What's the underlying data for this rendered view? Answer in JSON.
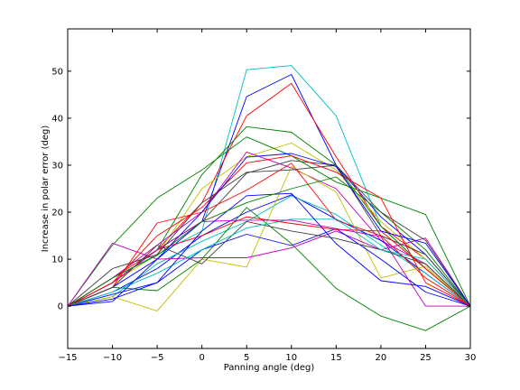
{
  "chart_data": {
    "type": "line",
    "title": "",
    "xlabel": "Panning angle (deg)",
    "ylabel": "Increase in polar error (deg)",
    "xlim": [
      -15,
      30
    ],
    "ylim": [
      -9,
      59
    ],
    "xticks": [
      -15,
      -10,
      -5,
      0,
      5,
      10,
      15,
      20,
      25,
      30
    ],
    "yticks": [
      0,
      10,
      20,
      30,
      40,
      50
    ],
    "grid": false,
    "x": [
      -15,
      -10,
      -5,
      0,
      5,
      10,
      15,
      20,
      25,
      30
    ],
    "series": [
      {
        "color": "#00bfbf",
        "values": [
          0,
          6,
          11,
          16,
          50.3,
          51.2,
          40.5,
          17,
          8,
          0
        ]
      },
      {
        "color": "#0000ff",
        "values": [
          0,
          4,
          10,
          18,
          44.6,
          49.3,
          30.0,
          19,
          11,
          0
        ]
      },
      {
        "color": "#ff0000",
        "values": [
          0,
          6,
          12,
          22,
          40.5,
          47.4,
          31.8,
          17,
          10,
          0
        ]
      },
      {
        "color": "#008000",
        "values": [
          0,
          5,
          12,
          28,
          38.2,
          37.0,
          30.0,
          17,
          8,
          0
        ]
      },
      {
        "color": "#bfbf00",
        "values": [
          0,
          5,
          11,
          25,
          31.8,
          34.7,
          29.0,
          18,
          10,
          0
        ]
      },
      {
        "color": "#bf00bf",
        "values": [
          0,
          6,
          13,
          20,
          32.8,
          29.4,
          25.0,
          14,
          9,
          0
        ]
      },
      {
        "color": "#404040",
        "values": [
          0,
          5,
          12,
          18,
          28.3,
          31.0,
          30.0,
          15,
          11,
          0
        ]
      },
      {
        "color": "#008000",
        "values": [
          0,
          13,
          23,
          29,
          36.0,
          32.0,
          26.4,
          23,
          19.5,
          0
        ]
      },
      {
        "color": "#0000ff",
        "values": [
          0,
          3,
          8,
          15,
          20,
          23.7,
          18.5,
          14,
          7,
          0
        ]
      },
      {
        "color": "#00bfbf",
        "values": [
          0,
          2,
          9,
          13.8,
          18,
          23.5,
          19.5,
          13,
          7,
          0
        ]
      },
      {
        "color": "#ff0000",
        "values": [
          0,
          4,
          17.7,
          20,
          24.7,
          30.4,
          18.3,
          15,
          6,
          0
        ]
      },
      {
        "color": "#bfbf00",
        "values": [
          0,
          2,
          -1,
          10,
          8.3,
          29.7,
          24.3,
          6,
          8.5,
          0
        ]
      },
      {
        "color": "#008000",
        "values": [
          0,
          4,
          3.3,
          10,
          21,
          13.3,
          3.8,
          -2.1,
          -5.2,
          0
        ]
      },
      {
        "color": "#bf00bf",
        "values": [
          0,
          13.4,
          10,
          10.3,
          10.3,
          12.4,
          16.0,
          12,
          14.5,
          0
        ]
      },
      {
        "color": "#0000ff",
        "values": [
          0,
          2.5,
          5,
          12,
          15.3,
          12.9,
          16.5,
          10,
          3,
          0
        ]
      },
      {
        "color": "#404040",
        "values": [
          0,
          4,
          13,
          9,
          18,
          16,
          14.4,
          12,
          9,
          0
        ]
      },
      {
        "color": "#00bfbf",
        "values": [
          0,
          3,
          7,
          12,
          16.6,
          18.5,
          18.5,
          12,
          10,
          0
        ]
      },
      {
        "color": "#ff0000",
        "values": [
          0,
          5,
          12,
          15,
          19,
          17.6,
          16.3,
          16,
          8,
          0
        ]
      },
      {
        "color": "#bf00bf",
        "values": [
          0,
          5,
          12,
          18,
          18.3,
          18.3,
          16.5,
          14.8,
          0,
          0
        ]
      },
      {
        "color": "#0000ff",
        "values": [
          0,
          1.5,
          5,
          16,
          23.5,
          24,
          13.3,
          5.4,
          4.2,
          0
        ]
      },
      {
        "color": "#008000",
        "values": [
          0,
          6,
          10.8,
          18,
          22,
          25,
          27.5,
          20,
          12,
          0
        ]
      },
      {
        "color": "#404040",
        "values": [
          0,
          8,
          11,
          22,
          28.5,
          29,
          30,
          20,
          14,
          0
        ]
      },
      {
        "color": "#ff0000",
        "values": [
          0,
          5,
          15,
          21,
          30.5,
          32,
          28.5,
          23,
          5,
          0
        ]
      },
      {
        "color": "#0000ff",
        "values": [
          0,
          1,
          10,
          20,
          31.7,
          32.5,
          29.7,
          16,
          13.4,
          0
        ]
      }
    ]
  }
}
